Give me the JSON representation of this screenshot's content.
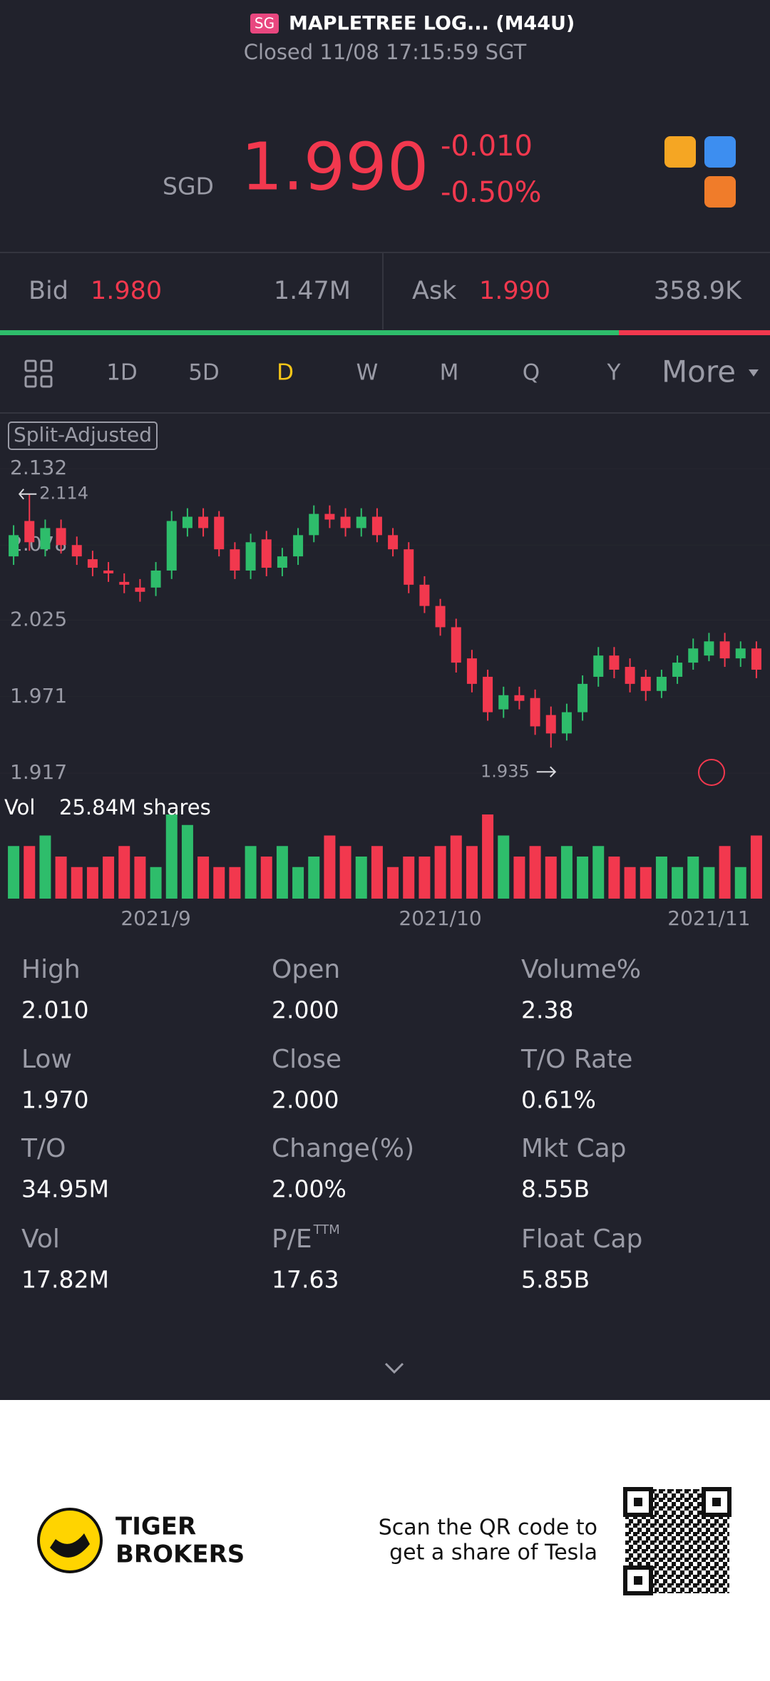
{
  "header": {
    "badge": "SG",
    "name": "MAPLETREE LOG... (M44U)",
    "status": "Closed 11/08 17:15:59 SGT"
  },
  "quote": {
    "currency": "SGD",
    "price": "1.990",
    "change": "-0.010",
    "change_pct": "-0.50%"
  },
  "orderbook": {
    "bid_label": "Bid",
    "bid": "1.980",
    "bid_size": "1.47M",
    "ask_label": "Ask",
    "ask": "1.990",
    "ask_size": "358.9K"
  },
  "tabs": {
    "items": [
      "1D",
      "5D",
      "D",
      "W",
      "M",
      "Q",
      "Y",
      "More"
    ],
    "active_index": 2
  },
  "chart_data": {
    "type": "candlestick",
    "badge": "Split-Adjusted",
    "high_annotation": "2.114",
    "low_annotation": "1.935",
    "volume_label": "Vol",
    "volume_total": "25.84M shares",
    "categories": [
      null,
      null,
      null,
      null,
      null,
      null,
      null,
      null,
      null,
      "2021/9",
      null,
      null,
      null,
      null,
      null,
      null,
      null,
      null,
      null,
      null,
      null,
      null,
      null,
      null,
      null,
      null,
      null,
      "2021/10",
      null,
      null,
      null,
      null,
      null,
      null,
      null,
      null,
      null,
      null,
      null,
      null,
      null,
      null,
      null,
      null,
      "2021/11",
      null,
      null,
      null
    ],
    "open": [
      2.07,
      2.095,
      2.075,
      2.09,
      2.078,
      2.068,
      2.06,
      2.052,
      2.048,
      2.048,
      2.06,
      2.09,
      2.098,
      2.098,
      2.075,
      2.06,
      2.082,
      2.062,
      2.07,
      2.085,
      2.1,
      2.098,
      2.09,
      2.098,
      2.085,
      2.075,
      2.05,
      2.035,
      2.02,
      1.998,
      1.985,
      1.962,
      1.972,
      1.97,
      1.958,
      1.945,
      1.96,
      1.985,
      2.0,
      1.992,
      1.985,
      1.975,
      1.985,
      1.995,
      2.0,
      2.01,
      1.998,
      2.005
    ],
    "high": [
      2.092,
      2.114,
      2.096,
      2.096,
      2.084,
      2.074,
      2.066,
      2.058,
      2.054,
      2.066,
      2.102,
      2.104,
      2.104,
      2.102,
      2.08,
      2.086,
      2.088,
      2.076,
      2.09,
      2.106,
      2.106,
      2.104,
      2.104,
      2.104,
      2.09,
      2.08,
      2.056,
      2.04,
      2.026,
      2.004,
      1.99,
      1.978,
      1.978,
      1.976,
      1.964,
      1.966,
      1.986,
      2.006,
      2.006,
      1.998,
      1.99,
      1.99,
      2.0,
      2.012,
      2.016,
      2.016,
      2.01,
      2.01
    ],
    "low": [
      2.064,
      2.074,
      2.07,
      2.072,
      2.064,
      2.056,
      2.052,
      2.044,
      2.038,
      2.042,
      2.054,
      2.084,
      2.084,
      2.07,
      2.054,
      2.054,
      2.056,
      2.056,
      2.064,
      2.08,
      2.09,
      2.084,
      2.084,
      2.08,
      2.07,
      2.044,
      2.03,
      2.014,
      1.988,
      1.974,
      1.954,
      1.956,
      1.962,
      1.944,
      1.935,
      1.94,
      1.954,
      1.978,
      1.984,
      1.974,
      1.968,
      1.97,
      1.98,
      1.99,
      1.996,
      1.992,
      1.992,
      1.984
    ],
    "close": [
      2.085,
      2.08,
      2.09,
      2.078,
      2.07,
      2.062,
      2.058,
      2.05,
      2.045,
      2.06,
      2.095,
      2.098,
      2.09,
      2.075,
      2.06,
      2.08,
      2.062,
      2.07,
      2.085,
      2.1,
      2.096,
      2.09,
      2.098,
      2.085,
      2.075,
      2.05,
      2.035,
      2.02,
      1.995,
      1.98,
      1.96,
      1.972,
      1.968,
      1.95,
      1.945,
      1.96,
      1.98,
      2.0,
      1.99,
      1.98,
      1.975,
      1.985,
      1.995,
      2.005,
      2.01,
      1.998,
      2.005,
      1.99
    ],
    "volume": [
      5,
      5,
      6,
      4,
      3,
      3,
      4,
      5,
      4,
      3,
      8,
      7,
      4,
      3,
      3,
      5,
      4,
      5,
      3,
      4,
      6,
      5,
      4,
      5,
      3,
      4,
      4,
      5,
      6,
      5,
      8,
      6,
      4,
      5,
      4,
      5,
      4,
      5,
      4,
      3,
      3,
      4,
      3,
      4,
      3,
      5,
      3,
      6
    ],
    "ylim": [
      1.917,
      2.132
    ],
    "yticks": [
      2.132,
      2.078,
      2.025,
      1.971,
      1.917
    ],
    "volume_ylim": [
      0,
      8
    ],
    "up_color": "#2ebd6b",
    "down_color": "#f2384e"
  },
  "stats": [
    {
      "label": "High",
      "value": "2.010"
    },
    {
      "label": "Open",
      "value": "2.000"
    },
    {
      "label": "Volume%",
      "value": "2.38"
    },
    {
      "label": "Low",
      "value": "1.970"
    },
    {
      "label": "Close",
      "value": "2.000"
    },
    {
      "label": "T/O Rate",
      "value": "0.61%"
    },
    {
      "label": "T/O",
      "value": "34.95M"
    },
    {
      "label": "Change(%)",
      "value": "2.00%"
    },
    {
      "label": "Mkt Cap",
      "value": "8.55B"
    },
    {
      "label": "Vol",
      "value": "17.82M"
    },
    {
      "label": "P/E",
      "label_sup": "TTM",
      "value": "17.63"
    },
    {
      "label": "Float Cap",
      "value": "5.85B"
    }
  ],
  "footer": {
    "brand_line1": "TIGER",
    "brand_line2": "BROKERS",
    "promo_line1": "Scan the QR code to",
    "promo_line2": "get a share of Tesla"
  }
}
